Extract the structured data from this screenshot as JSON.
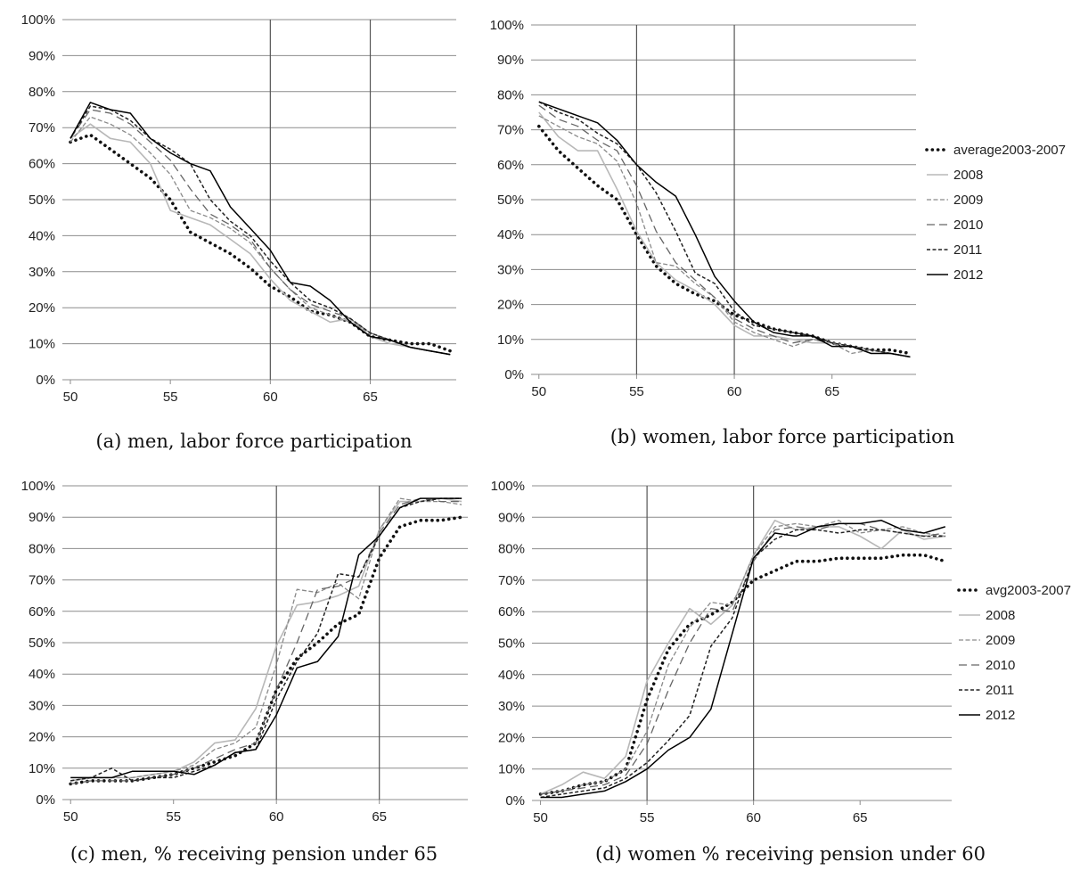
{
  "colors": {
    "avg": "#111111",
    "y2008": "#b8b8b8",
    "y2009": "#8a8a8a",
    "y2010": "#666666",
    "y2011": "#222222",
    "y2012": "#000000",
    "grid": "#8c8c8c"
  },
  "chart_data": [
    {
      "id": "a",
      "type": "line",
      "caption": "(a) men, labor force participation",
      "x": [
        50,
        51,
        52,
        53,
        54,
        55,
        56,
        57,
        58,
        59,
        60,
        61,
        62,
        63,
        64,
        65,
        66,
        67,
        68,
        69
      ],
      "xticks": [
        "50",
        "55",
        "60",
        "65"
      ],
      "xlim": [
        49.6,
        69.3
      ],
      "ylim": [
        0,
        1
      ],
      "yticks": [
        "0%",
        "10%",
        "20%",
        "30%",
        "40%",
        "50%",
        "60%",
        "70%",
        "80%",
        "90%",
        "100%"
      ],
      "vlines": [
        60,
        65
      ],
      "grid": true,
      "legend": "right",
      "series": [
        {
          "name": "average2003-2007",
          "style": "avg",
          "values": [
            0.66,
            0.68,
            0.64,
            0.6,
            0.56,
            0.5,
            0.41,
            0.38,
            0.35,
            0.31,
            0.26,
            0.23,
            0.19,
            0.18,
            0.16,
            0.12,
            0.11,
            0.1,
            0.1,
            0.08
          ]
        },
        {
          "name": "2008",
          "style": "y2008",
          "values": [
            0.67,
            0.71,
            0.67,
            0.66,
            0.6,
            0.47,
            0.45,
            0.43,
            0.39,
            0.35,
            0.28,
            0.22,
            0.19,
            0.16,
            0.17,
            0.12,
            0.1,
            0.09,
            0.08,
            0.07
          ]
        },
        {
          "name": "2009",
          "style": "y2009",
          "values": [
            0.66,
            0.73,
            0.71,
            0.68,
            0.63,
            0.57,
            0.47,
            0.45,
            0.42,
            0.38,
            0.31,
            0.25,
            0.2,
            0.18,
            0.16,
            0.13,
            0.11,
            0.09,
            0.08,
            0.07
          ]
        },
        {
          "name": "2010",
          "style": "y2010",
          "values": [
            0.67,
            0.75,
            0.74,
            0.71,
            0.66,
            0.61,
            0.53,
            0.46,
            0.43,
            0.39,
            0.31,
            0.25,
            0.21,
            0.19,
            0.17,
            0.13,
            0.11,
            0.09,
            0.08,
            0.07
          ]
        },
        {
          "name": "2011",
          "style": "y2011",
          "values": [
            0.67,
            0.76,
            0.75,
            0.72,
            0.67,
            0.64,
            0.6,
            0.5,
            0.44,
            0.4,
            0.33,
            0.27,
            0.22,
            0.2,
            0.17,
            0.13,
            0.11,
            0.09,
            0.08,
            0.07
          ]
        },
        {
          "name": "2012",
          "style": "y2012",
          "values": [
            0.67,
            0.77,
            0.75,
            0.74,
            0.67,
            0.63,
            0.6,
            0.58,
            0.48,
            0.42,
            0.36,
            0.27,
            0.26,
            0.22,
            0.16,
            0.12,
            0.11,
            0.09,
            0.08,
            0.07
          ]
        }
      ]
    },
    {
      "id": "b",
      "type": "line",
      "caption": "(b) women, labor force participation",
      "x": [
        50,
        51,
        52,
        53,
        54,
        55,
        56,
        57,
        58,
        59,
        60,
        61,
        62,
        63,
        64,
        65,
        66,
        67,
        68,
        69
      ],
      "xticks": [
        "50",
        "55",
        "60",
        "65"
      ],
      "xlim": [
        49.6,
        69.3
      ],
      "ylim": [
        0,
        1
      ],
      "yticks": [
        "0%",
        "10%",
        "20%",
        "30%",
        "40%",
        "50%",
        "60%",
        "70%",
        "80%",
        "90%",
        "100%"
      ],
      "vlines": [
        55,
        60
      ],
      "grid": true,
      "legend": "right",
      "series": [
        {
          "name": "average2003-2007",
          "style": "avg",
          "values": [
            0.71,
            0.64,
            0.59,
            0.54,
            0.5,
            0.4,
            0.31,
            0.26,
            0.23,
            0.21,
            0.17,
            0.15,
            0.13,
            0.12,
            0.11,
            0.09,
            0.08,
            0.07,
            0.07,
            0.06
          ]
        },
        {
          "name": "2008",
          "style": "y2008",
          "values": [
            0.75,
            0.68,
            0.64,
            0.64,
            0.53,
            0.41,
            0.32,
            0.27,
            0.24,
            0.2,
            0.14,
            0.11,
            0.11,
            0.1,
            0.09,
            0.09,
            0.08,
            0.07,
            0.06,
            0.05
          ]
        },
        {
          "name": "2009",
          "style": "y2009",
          "values": [
            0.74,
            0.71,
            0.68,
            0.66,
            0.61,
            0.49,
            0.32,
            0.31,
            0.26,
            0.22,
            0.15,
            0.12,
            0.1,
            0.08,
            0.1,
            0.09,
            0.06,
            0.07,
            0.06,
            0.05
          ]
        },
        {
          "name": "2010",
          "style": "y2010",
          "values": [
            0.77,
            0.73,
            0.71,
            0.67,
            0.64,
            0.54,
            0.41,
            0.32,
            0.27,
            0.22,
            0.16,
            0.13,
            0.11,
            0.09,
            0.1,
            0.09,
            0.08,
            0.07,
            0.06,
            0.05
          ]
        },
        {
          "name": "2011",
          "style": "y2011",
          "values": [
            0.78,
            0.75,
            0.73,
            0.69,
            0.66,
            0.6,
            0.52,
            0.41,
            0.29,
            0.26,
            0.18,
            0.14,
            0.13,
            0.12,
            0.11,
            0.09,
            0.08,
            0.07,
            0.06,
            0.05
          ]
        },
        {
          "name": "2012",
          "style": "y2012",
          "values": [
            0.78,
            0.76,
            0.74,
            0.72,
            0.67,
            0.6,
            0.55,
            0.51,
            0.4,
            0.28,
            0.21,
            0.15,
            0.12,
            0.11,
            0.11,
            0.08,
            0.08,
            0.06,
            0.06,
            0.05
          ]
        }
      ]
    },
    {
      "id": "c",
      "type": "line",
      "caption": "(c) men, % receiving pension under 65",
      "x": [
        50,
        51,
        52,
        53,
        54,
        55,
        56,
        57,
        58,
        59,
        60,
        61,
        62,
        63,
        64,
        65,
        66,
        67,
        68,
        69
      ],
      "xticks": [
        "50",
        "55",
        "60",
        "65"
      ],
      "xlim": [
        49.6,
        69.3
      ],
      "ylim": [
        0,
        1
      ],
      "yticks": [
        "0%",
        "10%",
        "20%",
        "30%",
        "40%",
        "50%",
        "60%",
        "70%",
        "80%",
        "90%",
        "100%"
      ],
      "vlines": [
        60,
        65
      ],
      "grid": true,
      "legend": "none",
      "series": [
        {
          "name": "average2003-2007",
          "style": "avg",
          "values": [
            0.05,
            0.06,
            0.06,
            0.06,
            0.07,
            0.08,
            0.1,
            0.12,
            0.14,
            0.18,
            0.35,
            0.45,
            0.5,
            0.56,
            0.59,
            0.77,
            0.87,
            0.89,
            0.89,
            0.9
          ]
        },
        {
          "name": "2008",
          "style": "y2008",
          "values": [
            0.06,
            0.07,
            0.07,
            0.07,
            0.08,
            0.09,
            0.12,
            0.18,
            0.19,
            0.29,
            0.49,
            0.62,
            0.63,
            0.65,
            0.68,
            0.86,
            0.95,
            0.95,
            0.96,
            0.95
          ]
        },
        {
          "name": "2009",
          "style": "y2009",
          "values": [
            0.06,
            0.07,
            0.07,
            0.07,
            0.08,
            0.09,
            0.11,
            0.16,
            0.18,
            0.23,
            0.43,
            0.67,
            0.66,
            0.69,
            0.64,
            0.86,
            0.96,
            0.95,
            0.95,
            0.94
          ]
        },
        {
          "name": "2010",
          "style": "y2010",
          "values": [
            0.05,
            0.06,
            0.06,
            0.06,
            0.07,
            0.08,
            0.1,
            0.13,
            0.16,
            0.18,
            0.35,
            0.5,
            0.67,
            0.68,
            0.71,
            0.85,
            0.94,
            0.96,
            0.95,
            0.95
          ]
        },
        {
          "name": "2011",
          "style": "y2011",
          "values": [
            0.06,
            0.07,
            0.1,
            0.06,
            0.07,
            0.07,
            0.09,
            0.11,
            0.15,
            0.16,
            0.32,
            0.44,
            0.53,
            0.72,
            0.71,
            0.84,
            0.93,
            0.95,
            0.96,
            0.96
          ]
        },
        {
          "name": "2012",
          "style": "y2012",
          "values": [
            0.07,
            0.07,
            0.07,
            0.09,
            0.09,
            0.09,
            0.08,
            0.11,
            0.15,
            0.16,
            0.27,
            0.42,
            0.44,
            0.52,
            0.78,
            0.84,
            0.93,
            0.96,
            0.96,
            0.96
          ]
        }
      ]
    },
    {
      "id": "d",
      "type": "line",
      "caption": "(d) women % receiving pension under 60",
      "x": [
        50,
        51,
        52,
        53,
        54,
        55,
        56,
        57,
        58,
        59,
        60,
        61,
        62,
        63,
        64,
        65,
        66,
        67,
        68,
        69
      ],
      "xticks": [
        "50",
        "55",
        "60",
        "65"
      ],
      "xlim": [
        49.6,
        69.3
      ],
      "ylim": [
        0,
        1
      ],
      "yticks": [
        "0%",
        "10%",
        "20%",
        "30%",
        "40%",
        "50%",
        "60%",
        "70%",
        "80%",
        "90%",
        "100%"
      ],
      "vlines": [
        55,
        60
      ],
      "grid": true,
      "legend": "right",
      "series": [
        {
          "name": "avg2003-2007",
          "style": "avg",
          "values": [
            0.02,
            0.03,
            0.05,
            0.06,
            0.1,
            0.32,
            0.48,
            0.56,
            0.59,
            0.63,
            0.7,
            0.73,
            0.76,
            0.76,
            0.77,
            0.77,
            0.77,
            0.78,
            0.78,
            0.76
          ]
        },
        {
          "name": "2008",
          "style": "y2008",
          "values": [
            0.02,
            0.05,
            0.09,
            0.07,
            0.14,
            0.38,
            0.5,
            0.61,
            0.56,
            0.62,
            0.78,
            0.89,
            0.86,
            0.87,
            0.87,
            0.84,
            0.8,
            0.86,
            0.83,
            0.84
          ]
        },
        {
          "name": "2009",
          "style": "y2009",
          "values": [
            0.02,
            0.03,
            0.05,
            0.06,
            0.1,
            0.22,
            0.43,
            0.55,
            0.63,
            0.62,
            0.78,
            0.87,
            0.88,
            0.87,
            0.89,
            0.85,
            0.86,
            0.87,
            0.85,
            0.84
          ]
        },
        {
          "name": "2010",
          "style": "y2010",
          "values": [
            0.02,
            0.03,
            0.04,
            0.05,
            0.08,
            0.18,
            0.35,
            0.5,
            0.61,
            0.6,
            0.76,
            0.86,
            0.87,
            0.86,
            0.88,
            0.88,
            0.86,
            0.85,
            0.84,
            0.85
          ]
        },
        {
          "name": "2011",
          "style": "y2011",
          "values": [
            0.01,
            0.02,
            0.03,
            0.04,
            0.07,
            0.12,
            0.19,
            0.27,
            0.49,
            0.58,
            0.77,
            0.83,
            0.86,
            0.86,
            0.85,
            0.86,
            0.86,
            0.85,
            0.84,
            0.84
          ]
        },
        {
          "name": "2012",
          "style": "y2012",
          "values": [
            0.01,
            0.01,
            0.02,
            0.03,
            0.06,
            0.1,
            0.16,
            0.2,
            0.29,
            0.53,
            0.77,
            0.85,
            0.84,
            0.87,
            0.88,
            0.88,
            0.89,
            0.86,
            0.85,
            0.87
          ]
        }
      ]
    }
  ]
}
